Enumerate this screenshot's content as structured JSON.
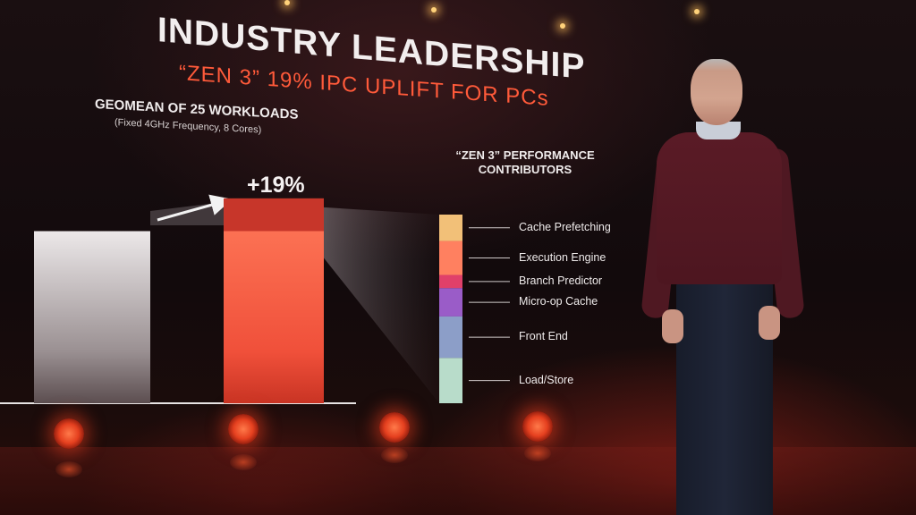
{
  "slide": {
    "title": "INDUSTRY LEADERSHIP",
    "subtitle": "“ZEN 3” 19% IPC UPLIFT FOR PCs"
  },
  "chart_data": [
    {
      "type": "bar",
      "title": "GEOMEAN OF 25 WORKLOADS",
      "subtitle": "(Fixed 4GHz Frequency, 8 Cores)",
      "categories": [
        "",
        ""
      ],
      "values": [
        1.0,
        1.19
      ],
      "annotation": "+19%",
      "ylim": [
        0,
        1.2
      ],
      "colors": [
        "#e9e4e5",
        "#ff6a4a"
      ],
      "uplift_color": "#c7362a",
      "grid": false
    },
    {
      "type": "bar",
      "stacked": true,
      "title": "“ZEN 3” PERFORMANCE CONTRIBUTORS",
      "segments": [
        {
          "name": "Cache Prefetching",
          "share": 0.14,
          "color": "#f2c078"
        },
        {
          "name": "Execution Engine",
          "share": 0.18,
          "color": "#ff8060"
        },
        {
          "name": "Branch Predictor",
          "share": 0.07,
          "color": "#e0406a"
        },
        {
          "name": "Micro-op Cache",
          "share": 0.15,
          "color": "#9a5cc8"
        },
        {
          "name": "Front End",
          "share": 0.22,
          "color": "#8c9ec8"
        },
        {
          "name": "Load/Store",
          "share": 0.24,
          "color": "#b8dcca"
        }
      ]
    }
  ]
}
